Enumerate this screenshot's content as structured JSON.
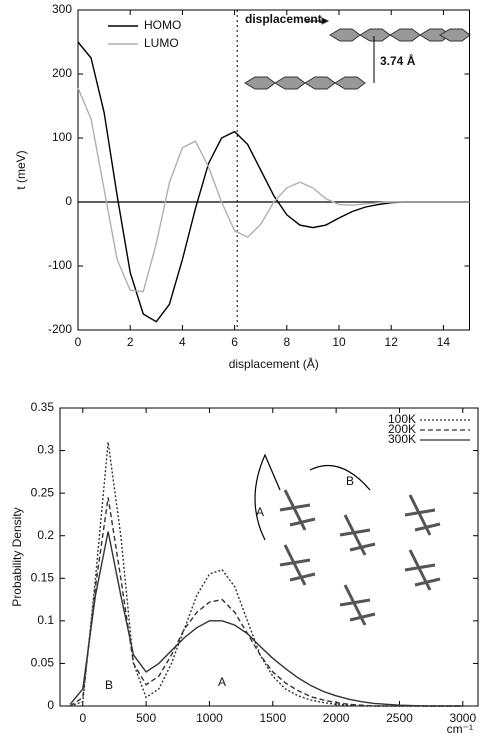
{
  "chart_data": [
    {
      "type": "line",
      "x": [
        0,
        0.5,
        1,
        1.5,
        2,
        2.5,
        3,
        3.5,
        4,
        4.5,
        5,
        5.5,
        6,
        6.5,
        7,
        7.5,
        8,
        8.5,
        9,
        9.5,
        10,
        10.5,
        11,
        11.5,
        12,
        12.5,
        13,
        13.5,
        14,
        14.5,
        15
      ],
      "series": [
        {
          "name": "HOMO",
          "color": "#000000",
          "dash": "solid",
          "values": [
            250,
            225,
            140,
            10,
            -110,
            -175,
            -187,
            -160,
            -90,
            -10,
            60,
            100,
            110,
            90,
            50,
            10,
            -20,
            -36,
            -40,
            -36,
            -25,
            -15,
            -8,
            -4,
            -1,
            0,
            0,
            0,
            0,
            0,
            0
          ]
        },
        {
          "name": "LUMO",
          "color": "#b0b0b0",
          "dash": "solid",
          "values": [
            178,
            130,
            20,
            -90,
            -138,
            -140,
            -65,
            30,
            85,
            95,
            55,
            0,
            -45,
            -55,
            -35,
            0,
            22,
            31,
            22,
            5,
            -4,
            -5,
            -3,
            -1,
            0,
            0,
            0,
            0,
            0,
            0,
            0
          ]
        }
      ],
      "xlim": [
        0,
        15
      ],
      "ylim": [
        -200,
        300
      ],
      "xticks": [
        0,
        2,
        4,
        6,
        8,
        10,
        12,
        14
      ],
      "yticks": [
        -200,
        -100,
        0,
        100,
        200,
        300
      ],
      "x_label": "displacement (Å)",
      "y_label": "t (meV)",
      "reference_line": 6.1,
      "zero_line": true,
      "legend": "upper left",
      "annotations": [
        "displacement",
        "3.74 Å"
      ]
    },
    {
      "type": "line",
      "x": [
        -100,
        0,
        100,
        200,
        300,
        400,
        500,
        600,
        700,
        800,
        900,
        1000,
        1100,
        1200,
        1300,
        1400,
        1500,
        1600,
        1700,
        1800,
        1900,
        2000,
        2100,
        2200,
        2300,
        2400,
        2500,
        2600,
        2700,
        2800,
        2900,
        3000
      ],
      "series": [
        {
          "name": "100K",
          "color": "#333333",
          "dash": "dotted",
          "values": [
            0,
            0.005,
            0.15,
            0.31,
            0.2,
            0.05,
            0.01,
            0.02,
            0.05,
            0.09,
            0.13,
            0.155,
            0.16,
            0.14,
            0.1,
            0.06,
            0.035,
            0.02,
            0.012,
            0.007,
            0.004,
            0.002,
            0.001,
            0,
            0,
            0,
            0,
            0,
            0,
            0,
            0,
            0
          ]
        },
        {
          "name": "200K",
          "color": "#333333",
          "dash": "dashed",
          "values": [
            0,
            0.01,
            0.14,
            0.245,
            0.15,
            0.05,
            0.025,
            0.035,
            0.06,
            0.09,
            0.11,
            0.122,
            0.125,
            0.11,
            0.085,
            0.06,
            0.04,
            0.027,
            0.018,
            0.011,
            0.007,
            0.004,
            0.002,
            0.001,
            0,
            0,
            0,
            0,
            0,
            0,
            0,
            0
          ]
        },
        {
          "name": "300K",
          "color": "#333333",
          "dash": "solid",
          "values": [
            0.002,
            0.02,
            0.13,
            0.205,
            0.13,
            0.06,
            0.04,
            0.05,
            0.065,
            0.08,
            0.092,
            0.1,
            0.1,
            0.095,
            0.085,
            0.07,
            0.056,
            0.044,
            0.033,
            0.024,
            0.017,
            0.012,
            0.008,
            0.005,
            0.003,
            0.002,
            0.001,
            0.0005,
            0,
            0,
            0,
            0
          ]
        }
      ],
      "xlim": [
        -180,
        3120
      ],
      "ylim": [
        0,
        0.35
      ],
      "xticks": [
        0,
        500,
        1000,
        1500,
        2000,
        2500,
        3000
      ],
      "yticks": [
        0,
        0.05,
        0.1,
        0.15,
        0.2,
        0.25,
        0.3,
        0.35
      ],
      "x_label": "cm⁻¹",
      "y_label": "Probability Density",
      "legend": "upper right",
      "annotations": [
        "B",
        "A",
        "A",
        "B"
      ]
    }
  ]
}
